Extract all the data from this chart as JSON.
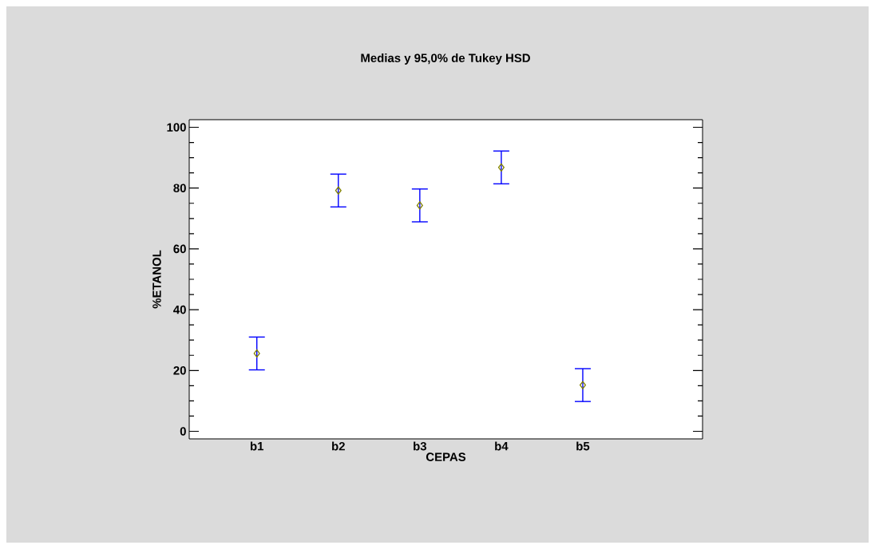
{
  "chart_data": {
    "type": "scatter",
    "title": "Medias y 95,0% de Tukey HSD",
    "xlabel": "CEPAS",
    "ylabel": "%ETANOL",
    "categories": [
      "b1",
      "b2",
      "b3",
      "b4",
      "b5"
    ],
    "values": [
      25.6,
      79.2,
      74.3,
      86.8,
      15.2
    ],
    "errors": [
      5.4,
      5.4,
      5.4,
      5.4,
      5.4
    ],
    "color": "#808000",
    "marker": "diamond",
    "ylim": [
      -2.5,
      102.5
    ],
    "yticks": [
      0,
      20,
      40,
      60,
      80,
      100
    ]
  }
}
